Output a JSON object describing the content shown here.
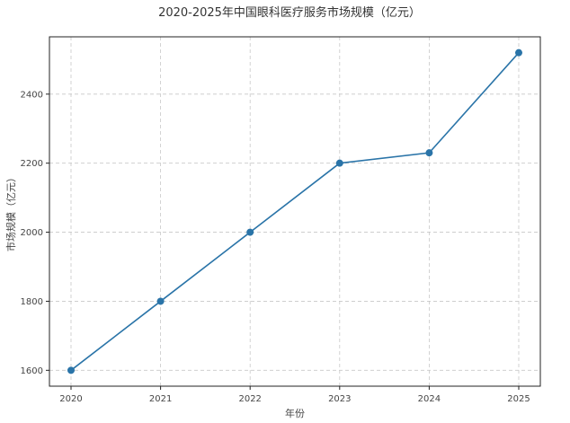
{
  "chart_data": {
    "type": "line",
    "title": "2020-2025年中国眼科医疗服务市场规模（亿元）",
    "xlabel": "年份",
    "ylabel": "市场规模（亿元）",
    "x": [
      "2020",
      "2021",
      "2022",
      "2023",
      "2024",
      "2025"
    ],
    "series": [
      {
        "values": [
          1600,
          1800,
          2000,
          2200,
          2230,
          2520
        ],
        "color": "#2a74a8",
        "marker": "circle"
      }
    ],
    "yticks": [
      1600,
      1800,
      2000,
      2200,
      2400
    ],
    "ylim": [
      1554,
      2566
    ],
    "grid": true
  }
}
